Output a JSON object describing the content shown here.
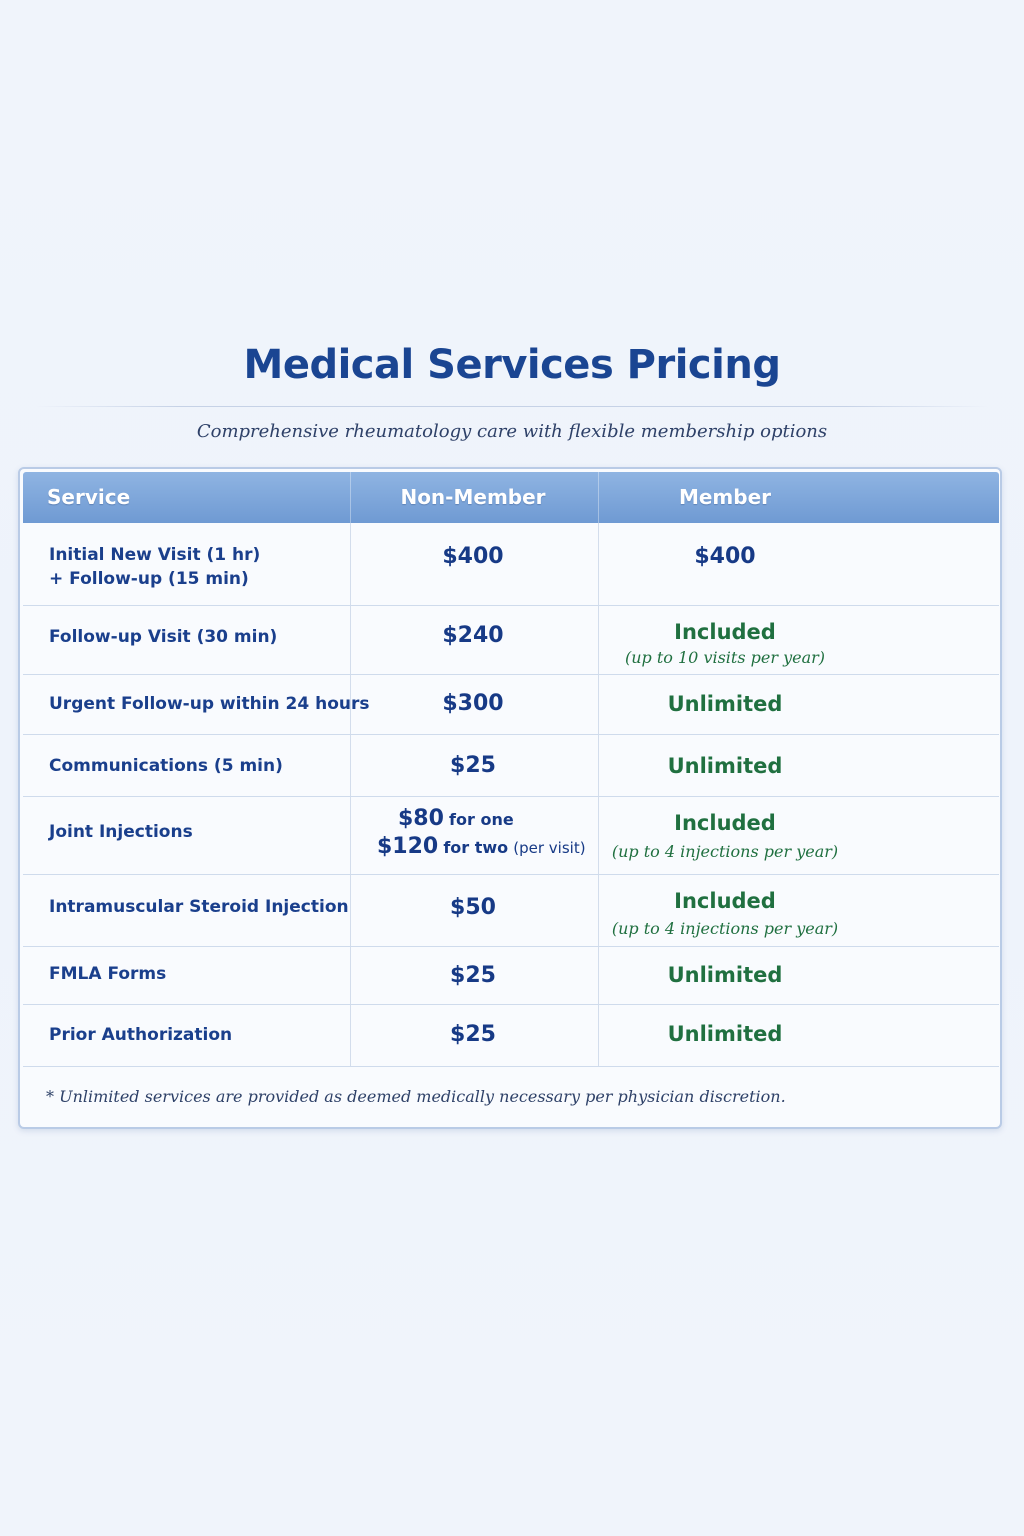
{
  "page": {
    "title": "Medical Services Pricing",
    "subtitle": "Comprehensive rheumatology care with flexible membership options"
  },
  "table": {
    "headers": [
      "Service",
      "Non-Member",
      "Member"
    ],
    "rows": [
      {
        "service_line1": "Initial New Visit (1 hr)",
        "service_line2": "+ Follow-up (15 min)",
        "non_member": "$400",
        "member": "$400",
        "member_note": ""
      },
      {
        "service_line1": "Follow-up Visit (30 min)",
        "non_member": "$240",
        "member": "Included",
        "member_note": "(up to 10 visits per year)"
      },
      {
        "service_line1": "Urgent Follow-up within 24 hours",
        "non_member": "$300",
        "member": "Unlimited",
        "member_note": ""
      },
      {
        "service_line1": "Communications (5 min)",
        "non_member": "$25",
        "member": "Unlimited",
        "member_note": ""
      },
      {
        "service_line1": "Joint Injections",
        "non_member_line1_price": "$80",
        "non_member_line1_text": "for one",
        "non_member_line2_price": "$120",
        "non_member_line2_text": "for two",
        "non_member_line2_note": "(per visit)",
        "member": "Included",
        "member_note": "(up to 4 injections per year)"
      },
      {
        "service_line1": "Intramuscular Steroid Injection",
        "non_member": "$50",
        "member": "Included",
        "member_note": "(up to 4 injections per year)"
      },
      {
        "service_line1": "FMLA Forms",
        "non_member": "$25",
        "member": "Unlimited",
        "member_note": ""
      },
      {
        "service_line1": "Prior Authorization",
        "non_member": "$25",
        "member": "Unlimited",
        "member_note": ""
      }
    ],
    "footnote": "* Unlimited services are provided as deemed medically necessary per physician discretion."
  },
  "colors": {
    "title": "#1a4592",
    "header_bg": "#7aa3d8",
    "service_text": "#1a3f8c",
    "price_text": "#173a86",
    "member_text": "#207040"
  }
}
